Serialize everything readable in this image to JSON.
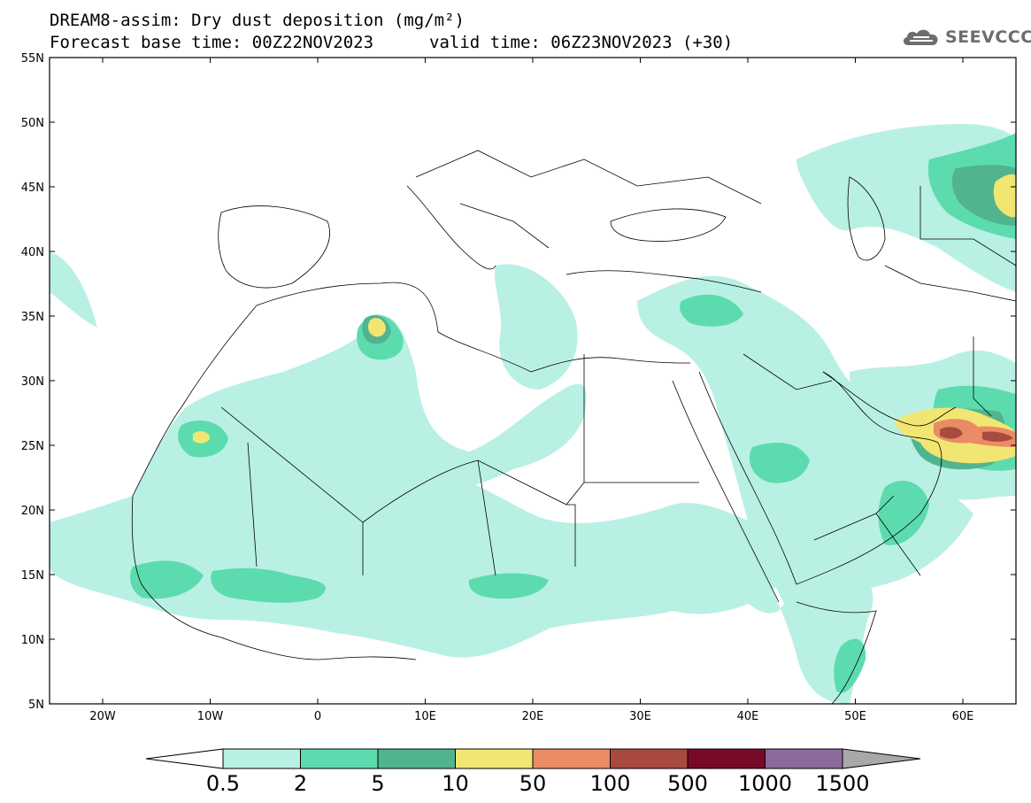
{
  "header": {
    "title": "DREAM8-assim: Dry dust deposition (mg/m²)",
    "base_time": "Forecast base time: 00Z22NOV2023",
    "valid_time": "valid time: 06Z23NOV2023 (+30)"
  },
  "logo": {
    "text": "SEEVCCC",
    "icon": "cloud-logo-icon"
  },
  "map": {
    "lat_labels": [
      "55N",
      "50N",
      "45N",
      "40N",
      "35N",
      "30N",
      "25N",
      "20N",
      "15N",
      "10N",
      "5N"
    ],
    "lon_labels": [
      "20W",
      "10W",
      "0",
      "10E",
      "20E",
      "30E",
      "40E",
      "50E",
      "60E"
    ]
  },
  "colorbar": {
    "labels": [
      "0.5",
      "2",
      "5",
      "10",
      "50",
      "100",
      "500",
      "1000",
      "1500"
    ],
    "colors": [
      "#b9f0e4",
      "#5cdcae",
      "#51b48e",
      "#f2e673",
      "#e98c65",
      "#a84a3f",
      "#770b27",
      "#8c6a9c",
      "#a8a8a8"
    ]
  },
  "colors": {
    "level_1": "#b9f0e4",
    "level_2": "#5cdcae",
    "level_3": "#51b48e",
    "level_4": "#f2e673",
    "level_5": "#e98c65",
    "level_6": "#a84a3f"
  }
}
